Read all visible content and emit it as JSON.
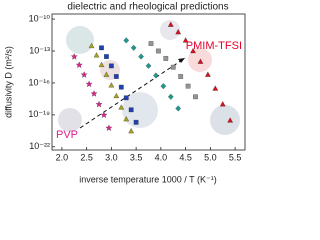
{
  "chart_data": {
    "type": "scatter",
    "title": "dielectric and rheological predictions",
    "x_label": "inverse temperature 1000 / T (K⁻¹)",
    "y_label": "diffusivity D (m²/s)",
    "log_y": true,
    "xlim": [
      1.8,
      5.7
    ],
    "ylim": [
      5e-23,
      3e-10
    ],
    "xticks": [
      {
        "value": 2,
        "label": "2.0"
      },
      2.5,
      {
        "value": 3,
        "label": "3.0"
      },
      3.5,
      {
        "value": 4,
        "label": "4.0"
      },
      4.5,
      {
        "value": 5,
        "label": "5.0"
      },
      5.5
    ],
    "yticks": [
      {
        "value": 1e-10,
        "label": "10⁻¹⁰"
      },
      {
        "value": 1e-13,
        "label": "10⁻¹³"
      },
      {
        "value": 1e-16,
        "label": "10⁻¹⁶"
      },
      {
        "value": 1e-19,
        "label": "10⁻¹⁹"
      },
      {
        "value": 1e-22,
        "label": "10⁻²²"
      }
    ],
    "annotations": [
      {
        "text": "PMIM-TFSI",
        "color": "#e8002a"
      },
      {
        "text": "PVP",
        "color": "#e0208f"
      }
    ],
    "series": [
      {
        "color": "#e0208f",
        "marker": "star",
        "x": [
          2.25,
          2.35,
          2.45,
          2.55,
          2.65,
          2.75,
          2.85,
          2.95
        ],
        "values": [
          3e-14,
          5e-15,
          6e-16,
          8e-17,
          1e-17,
          1e-18,
          1e-19,
          6e-21
        ]
      },
      {
        "color": "#a8a020",
        "marker": "triangle",
        "x": [
          2.6,
          2.7,
          2.8,
          2.9,
          3.0,
          3.1,
          3.2,
          3.3,
          3.4
        ],
        "values": [
          3e-13,
          4e-14,
          5e-15,
          6e-16,
          6e-17,
          6e-18,
          5e-19,
          4e-20,
          3e-21
        ]
      },
      {
        "color": "#2040b0",
        "marker": "square",
        "x": [
          2.8,
          2.9,
          3.0,
          3.1,
          3.2,
          3.3,
          3.4,
          3.5
        ],
        "values": [
          2e-13,
          3e-14,
          4e-15,
          4e-16,
          4e-17,
          4e-18,
          3e-19,
          2e-20
        ]
      },
      {
        "color": "#209890",
        "marker": "diamond",
        "x": [
          3.3,
          3.45,
          3.6,
          3.75,
          3.9,
          4.05,
          4.2,
          4.35
        ],
        "values": [
          1e-12,
          2e-13,
          3e-14,
          4e-15,
          5e-16,
          5e-17,
          5e-18,
          4e-19
        ]
      },
      {
        "color": "#909890",
        "marker": "square",
        "x": [
          3.8,
          3.95,
          4.1,
          4.25,
          4.4,
          4.55,
          4.7
        ],
        "values": [
          5e-13,
          1e-13,
          2e-14,
          3e-15,
          4e-16,
          5e-17,
          5e-18
        ]
      },
      {
        "color": "#d81020",
        "marker": "triangle",
        "x": [
          4.2,
          4.35,
          4.5,
          4.65,
          4.8,
          4.95,
          5.1,
          5.25,
          5.4
        ],
        "values": [
          3e-11,
          6e-12,
          1e-12,
          1e-13,
          1e-14,
          6e-16,
          3e-17,
          1e-18,
          3e-20
        ]
      }
    ]
  }
}
